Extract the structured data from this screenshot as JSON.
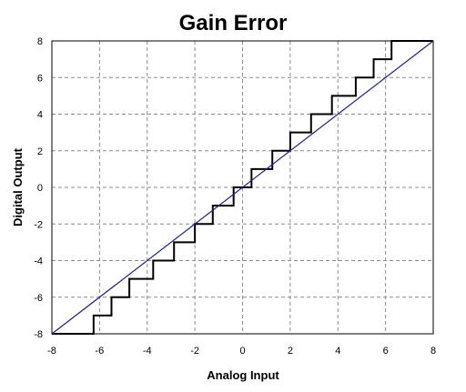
{
  "chart_data": {
    "type": "line",
    "title": "Gain Error",
    "xlabel": "Analog Input",
    "ylabel": "Digital Output",
    "xlim": [
      -8,
      8
    ],
    "ylim": [
      -8,
      8
    ],
    "x_ticks": [
      -8,
      -6,
      -4,
      -2,
      0,
      2,
      4,
      6,
      8
    ],
    "y_ticks": [
      -8,
      -6,
      -4,
      -2,
      0,
      2,
      4,
      6,
      8
    ],
    "grid": true,
    "series": [
      {
        "style": "staircase",
        "color": "#000000",
        "x": [
          -8,
          -6.25,
          -6.25,
          -5.5,
          -5.5,
          -4.75,
          -4.75,
          -3.75,
          -3.75,
          -2.875,
          -2.875,
          -2.0,
          -2.0,
          -1.25,
          -1.25,
          -0.375,
          -0.375,
          0.375,
          0.375,
          1.25,
          1.25,
          2.0,
          2.0,
          2.875,
          2.875,
          3.75,
          3.75,
          4.75,
          4.75,
          5.5,
          5.5,
          6.25,
          6.25,
          8
        ],
        "y": [
          -8,
          -8,
          -7,
          -7,
          -6,
          -6,
          -5,
          -5,
          -4,
          -4,
          -3,
          -3,
          -2,
          -2,
          -1,
          -1,
          0,
          0,
          1,
          1,
          2,
          2,
          3,
          3,
          4,
          4,
          5,
          5,
          6,
          6,
          7,
          7,
          8,
          8
        ]
      },
      {
        "style": "line",
        "color": "#1f1f99",
        "x": [
          -8,
          8
        ],
        "y": [
          -8,
          8
        ]
      }
    ]
  }
}
